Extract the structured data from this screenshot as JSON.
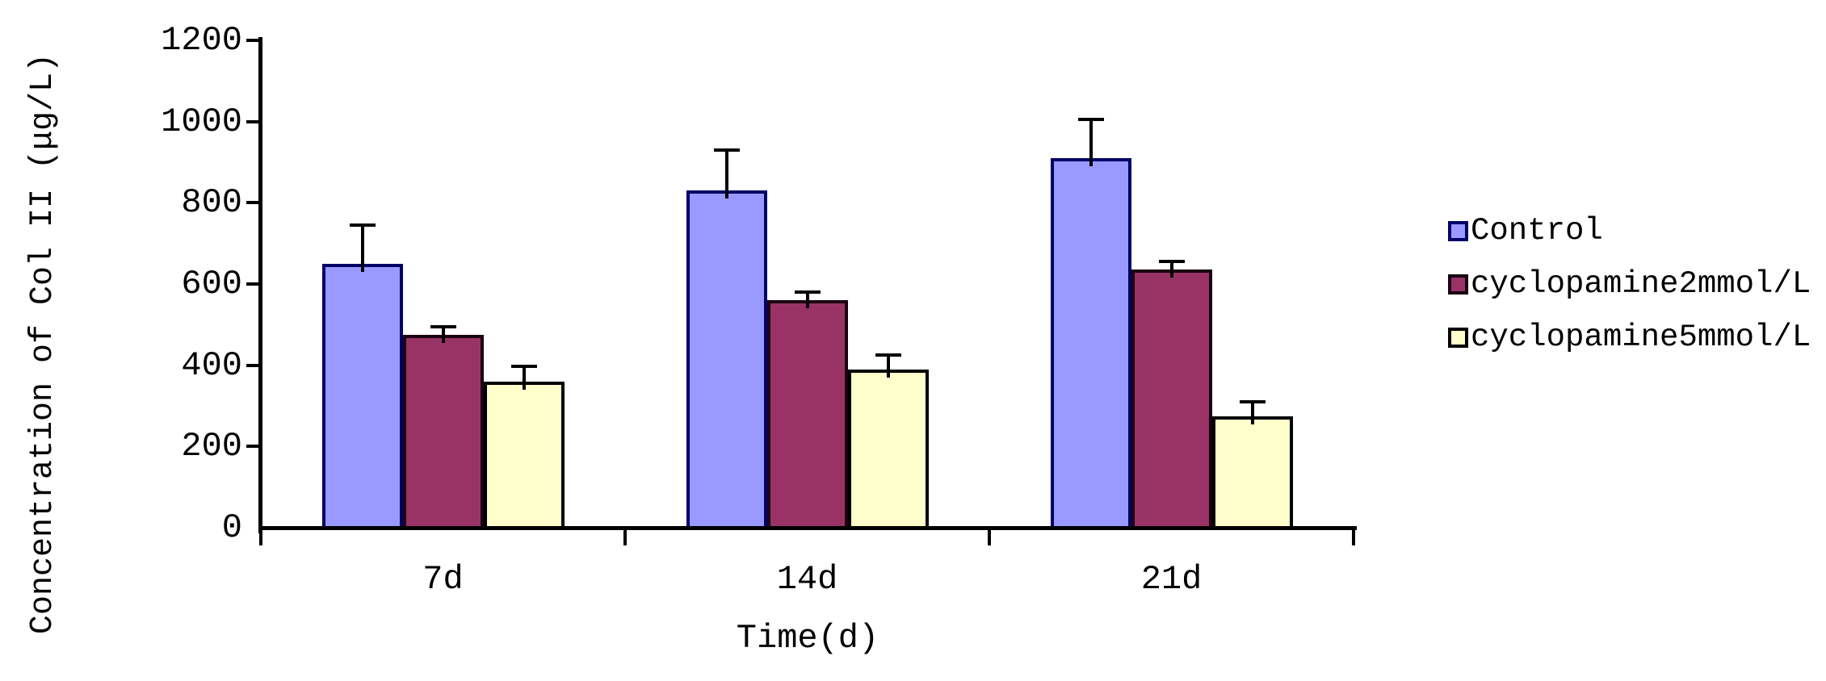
{
  "figure": {
    "background": "#FFFFFF",
    "text_color": "#000000",
    "axis_color": "#000000"
  },
  "chart_data": {
    "type": "bar",
    "title": "",
    "categories": [
      "7d",
      "14d",
      "21d"
    ],
    "series": [
      {
        "name": "Control",
        "values": [
          650,
          830,
          910
        ],
        "errors_plus": [
          95,
          100,
          95
        ],
        "fill": "#9999FF",
        "border": "#000066"
      },
      {
        "name": "cyclopamine2mmol/L",
        "values": [
          475,
          560,
          635
        ],
        "errors_plus": [
          20,
          20,
          20
        ],
        "fill": "#993366",
        "border": "#1A0011"
      },
      {
        "name": "cyclopamine5mmol/L",
        "values": [
          360,
          390,
          275
        ],
        "errors_plus": [
          38,
          35,
          35
        ],
        "fill": "#FFFFCC",
        "border": "#000000"
      }
    ],
    "xlabel": "Time(d)",
    "ylabel": "Concentration of Col II (μg/L)",
    "ylim": [
      0,
      1200
    ],
    "yticks": [
      0,
      200,
      400,
      600,
      800,
      1000,
      1200
    ],
    "grid": false,
    "legend_position": "right",
    "error_bars": "upper-only"
  }
}
